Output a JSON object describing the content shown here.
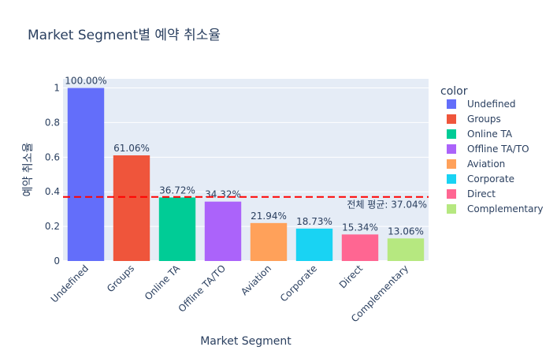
{
  "chart_data": {
    "type": "bar",
    "title": "Market Segment별 예약 취소율",
    "xlabel": "Market Segment",
    "ylabel": "예약 취소율",
    "legend_title": "color",
    "legend_position": "right",
    "categories": [
      "Undefined",
      "Groups",
      "Online TA",
      "Offline TA/TO",
      "Aviation",
      "Corporate",
      "Direct",
      "Complementary"
    ],
    "values": [
      1.0,
      0.6106,
      0.3672,
      0.3432,
      0.2194,
      0.1873,
      0.1534,
      0.1306
    ],
    "value_labels": [
      "100.00%",
      "61.06%",
      "36.72%",
      "34.32%",
      "21.94%",
      "18.73%",
      "15.34%",
      "13.06%"
    ],
    "colors": [
      "#636efa",
      "#EF553B",
      "#00cc96",
      "#ab63fa",
      "#FFA15A",
      "#19d3f3",
      "#FF6692",
      "#B6E880"
    ],
    "yticks": [
      0,
      0.2,
      0.4,
      0.6,
      0.8,
      1
    ],
    "ytick_labels": [
      "0",
      "0.2",
      "0.4",
      "0.6",
      "0.8",
      "1"
    ],
    "ylim": [
      0,
      1.0526
    ],
    "grid": true,
    "average_line": {
      "value": 0.3704,
      "label": "전체 평균: 37.04%",
      "color": "#ff0000"
    }
  }
}
